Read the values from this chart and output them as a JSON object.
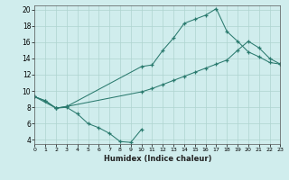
{
  "line1": {
    "x": [
      0,
      1,
      2,
      3,
      4,
      5,
      6,
      7,
      8,
      9,
      10
    ],
    "y": [
      9.3,
      8.8,
      7.9,
      8.0,
      7.2,
      6.0,
      5.5,
      4.8,
      3.8,
      3.7,
      5.3
    ]
  },
  "line2": {
    "x": [
      0,
      1,
      2,
      3,
      10,
      11,
      12,
      13,
      14,
      15,
      16,
      17,
      18,
      19,
      20,
      21,
      22,
      23
    ],
    "y": [
      9.3,
      8.8,
      7.9,
      8.1,
      13.0,
      13.2,
      15.0,
      16.5,
      18.3,
      18.8,
      19.3,
      20.1,
      17.3,
      16.1,
      14.8,
      14.2,
      13.5,
      13.3
    ]
  },
  "line3": {
    "x": [
      0,
      2,
      3,
      10,
      11,
      12,
      13,
      14,
      15,
      16,
      17,
      18,
      19,
      20,
      21,
      22,
      23
    ],
    "y": [
      9.3,
      7.9,
      8.1,
      9.9,
      10.3,
      10.8,
      11.3,
      11.8,
      12.3,
      12.8,
      13.3,
      13.8,
      15.0,
      16.1,
      15.3,
      14.0,
      13.3
    ]
  },
  "line_color": "#2a7a6e",
  "bg_color": "#d0eded",
  "grid_color": "#aed4d0",
  "xlabel": "Humidex (Indice chaleur)",
  "xlim": [
    0,
    23
  ],
  "ylim": [
    3.5,
    20.5
  ],
  "yticks": [
    4,
    6,
    8,
    10,
    12,
    14,
    16,
    18,
    20
  ],
  "xticks": [
    0,
    1,
    2,
    3,
    4,
    5,
    6,
    7,
    8,
    9,
    10,
    11,
    12,
    13,
    14,
    15,
    16,
    17,
    18,
    19,
    20,
    21,
    22,
    23
  ]
}
